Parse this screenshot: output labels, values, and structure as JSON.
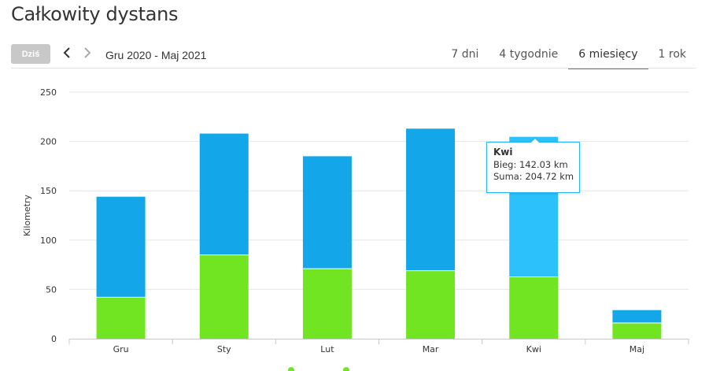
{
  "page": {
    "title": "Całkowity dystans"
  },
  "toolbar": {
    "today_label": "Dziś",
    "date_range": "Gru 2020 - Maj 2021",
    "tabs": [
      {
        "label": "7 dni",
        "active": false
      },
      {
        "label": "4 tygodnie",
        "active": false
      },
      {
        "label": "6 miesięcy",
        "active": true
      },
      {
        "label": "1 rok",
        "active": false
      }
    ]
  },
  "tooltip": {
    "title": "Kwi",
    "line1": "Bieg: 142.03 km",
    "line2": "Suma: 204.72 km"
  },
  "colors": {
    "series_top": "#13a7ea",
    "series_top_highlight": "#2cc1fb",
    "series_bottom": "#72e522",
    "accent": "#1a8fd6"
  },
  "chart_data": {
    "type": "bar",
    "stacked": true,
    "categories": [
      "Gru",
      "Sty",
      "Lut",
      "Mar",
      "Kwi",
      "Maj"
    ],
    "series": [
      {
        "key": "bottom",
        "values": [
          42,
          85,
          71,
          69,
          62.69,
          16
        ]
      },
      {
        "name": "Bieg",
        "key": "top",
        "values": [
          102,
          123,
          114,
          144,
          142.03,
          13
        ]
      }
    ],
    "totals": [
      144,
      208,
      185,
      213,
      204.72,
      29
    ],
    "ylabel": "Kilometry",
    "xlabel": "",
    "ylim": [
      0,
      250
    ],
    "yticks": [
      0,
      50,
      100,
      150,
      200,
      250
    ],
    "grid": true,
    "highlighted_category": "Kwi"
  }
}
